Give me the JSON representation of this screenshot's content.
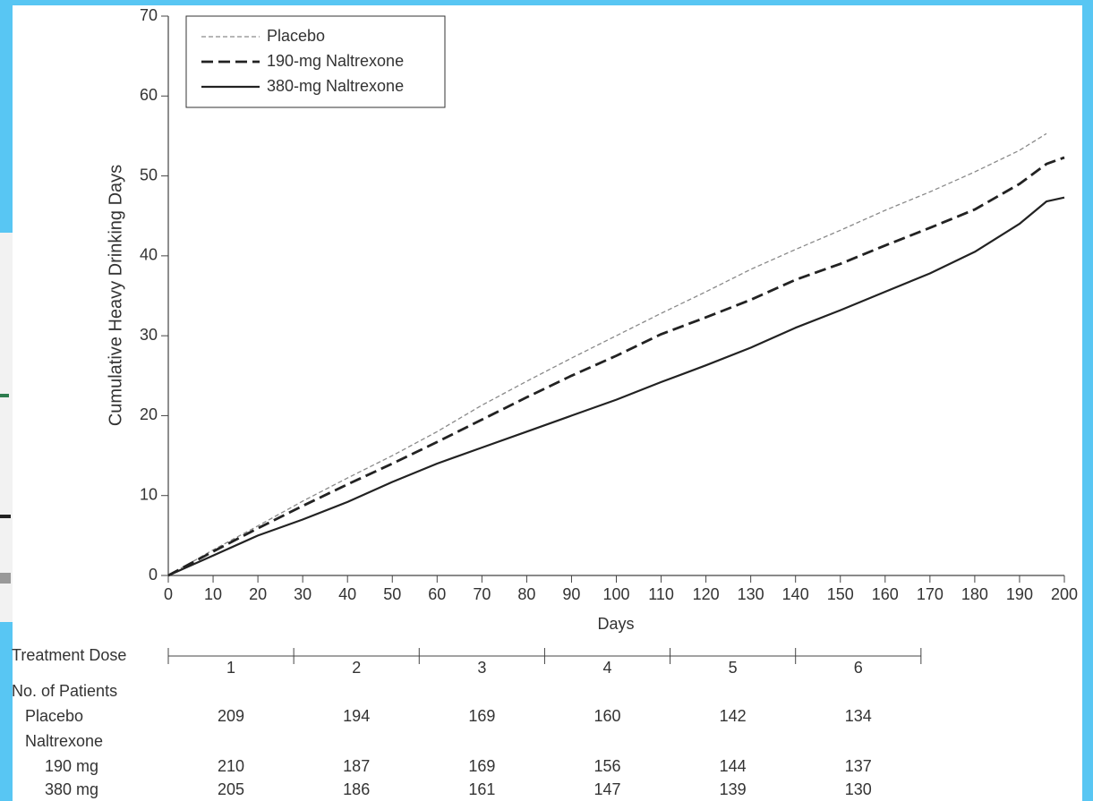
{
  "chart_data": {
    "type": "line",
    "xlabel": "Days",
    "ylabel": "Cumulative Heavy Drinking Days",
    "x": [
      0,
      10,
      20,
      30,
      40,
      50,
      60,
      70,
      80,
      90,
      100,
      110,
      120,
      130,
      140,
      150,
      160,
      170,
      180,
      190,
      196,
      200
    ],
    "series": [
      {
        "name": "Placebo",
        "color": "#8a8a8a",
        "style": "dotted",
        "values": [
          0,
          3.2,
          6.2,
          9.3,
          12.2,
          15.0,
          18.0,
          21.3,
          24.3,
          27.2,
          30.0,
          32.8,
          35.5,
          38.3,
          40.8,
          43.2,
          45.7,
          48.0,
          50.5,
          53.2,
          55.3,
          null
        ]
      },
      {
        "name": "190-mg Naltrexone",
        "color": "#222222",
        "style": "dashed",
        "values": [
          0,
          3.0,
          5.9,
          8.7,
          11.4,
          14.0,
          16.7,
          19.5,
          22.3,
          25.0,
          27.5,
          30.2,
          32.3,
          34.5,
          37.0,
          39.0,
          41.3,
          43.5,
          45.8,
          49.0,
          51.5,
          52.3
        ]
      },
      {
        "name": "380-mg Naltrexone",
        "color": "#222222",
        "style": "solid",
        "values": [
          0,
          2.5,
          5.0,
          7.0,
          9.2,
          11.7,
          14.0,
          16.0,
          18.0,
          20.0,
          22.0,
          24.2,
          26.3,
          28.5,
          31.0,
          33.2,
          35.5,
          37.8,
          40.5,
          44.0,
          46.8,
          47.3
        ]
      }
    ],
    "xlim": [
      0,
      200
    ],
    "xticks": [
      0,
      10,
      20,
      30,
      40,
      50,
      60,
      70,
      80,
      90,
      100,
      110,
      120,
      130,
      140,
      150,
      160,
      170,
      180,
      190,
      200
    ],
    "ylim": [
      0,
      70
    ],
    "yticks": [
      0,
      10,
      20,
      30,
      40,
      50,
      60,
      70
    ],
    "legend": "top-left"
  },
  "dose_axis": {
    "label": "Treatment Dose",
    "ticks": [
      0,
      28,
      56,
      84,
      112,
      140,
      168
    ],
    "doses": [
      1,
      2,
      3,
      4,
      5,
      6
    ]
  },
  "patients_table": {
    "header": "No. of Patients",
    "rows": [
      {
        "label": "Placebo",
        "values": [
          209,
          194,
          169,
          160,
          142,
          134
        ]
      },
      {
        "label": "Naltrexone"
      },
      {
        "label": "190 mg",
        "values": [
          210,
          187,
          169,
          156,
          144,
          137
        ]
      },
      {
        "label": "380 mg",
        "values": [
          205,
          186,
          161,
          147,
          139,
          130
        ]
      }
    ]
  }
}
